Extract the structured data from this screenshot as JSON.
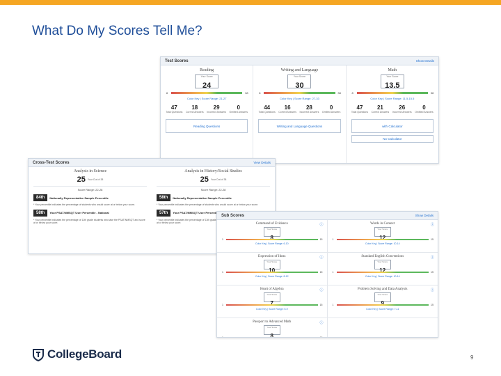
{
  "slide": {
    "title": "What Do My Scores Tell Me?",
    "page_number": "9",
    "logo_text": "CollegeBoard",
    "accent_color": "#f5a623",
    "title_color": "#1f4e99"
  },
  "test_scores": {
    "title": "Test Scores",
    "link": "Show Details",
    "columns": [
      {
        "subject": "Reading",
        "score_caption": "Your Score",
        "score": "24",
        "min": "8",
        "max": "38",
        "links": "Color Key | Score Range: 21-27",
        "stats": [
          {
            "num": "47",
            "label": "Total Questions"
          },
          {
            "num": "18",
            "label": "Correct Answers"
          },
          {
            "num": "29",
            "label": "Incorrect Answers"
          },
          {
            "num": "0",
            "label": "Omitted Answers"
          }
        ],
        "button": "Reading Questions"
      },
      {
        "subject": "Writing and Language",
        "score_caption": "Your Score",
        "score": "30",
        "min": "8",
        "max": "38",
        "links": "Color Key | Score Range: 27-33",
        "stats": [
          {
            "num": "44",
            "label": "Total Questions"
          },
          {
            "num": "16",
            "label": "Correct Answers"
          },
          {
            "num": "28",
            "label": "Incorrect Answers"
          },
          {
            "num": "0",
            "label": "Omitted Answers"
          }
        ],
        "button": "Writing and Language Questions"
      },
      {
        "subject": "Math",
        "score_caption": "Your Score",
        "score": "13.5",
        "min": "8",
        "max": "38",
        "links": "Color Key | Score Range: 11.5-15.5",
        "stats": [
          {
            "num": "47",
            "label": "Total Questions"
          },
          {
            "num": "21",
            "label": "Correct Answers"
          },
          {
            "num": "26",
            "label": "Incorrect Answers"
          },
          {
            "num": "0",
            "label": "Omitted Answers"
          }
        ],
        "button": "with Calculator",
        "button2": "No Calculator"
      }
    ]
  },
  "cross_test": {
    "title": "Cross-Test Scores",
    "link": "View Details",
    "columns": [
      {
        "subject": "Analysis in Science",
        "score": "25",
        "out_of": "Your Out of 38",
        "range": "Score Range: 22-28",
        "pct1": "84th",
        "pct1_label": "Nationally Representative Sample Percentile",
        "text1": "* Your percentile indicates the percentage of students who would score at or below your score.",
        "pct2": "58th",
        "pct2_label": "Your PSAT/NMSQT User Percentile - National",
        "text2": "* Your percentile indicates the percentage of 11th grade students who take the PSAT/NMSQT and score at or below your score."
      },
      {
        "subject": "Analysis in History/Social Studies",
        "score": "25",
        "out_of": "Your Out of 38",
        "range": "Score Range: 22-28",
        "pct1": "58th",
        "pct1_label": "Nationally Representative Sample Percentile",
        "text1": "* Your percentile indicates the percentage of students who would score at or below your score.",
        "pct2": "57th",
        "pct2_label": "Your PSAT/NMSQT User Percentile - National",
        "text2": "* Your percentile indicates the percentage of 11th grade students who take the PSAT/NMSQT and score at or below your score."
      }
    ]
  },
  "sub_scores": {
    "title": "Sub Scores",
    "link": "Show Details",
    "cells": [
      {
        "name": "Command of Evidence",
        "caption": "Your Score",
        "score": "8",
        "min": "1",
        "max": "15",
        "links": "Color Key | Score Range: 6-10"
      },
      {
        "name": "Words in Context",
        "caption": "Your Score",
        "score": "12",
        "min": "1",
        "max": "15",
        "links": "Color Key | Score Range: 10-14"
      },
      {
        "name": "Expression of Ideas",
        "caption": "Your Score",
        "score": "10",
        "min": "1",
        "max": "15",
        "links": "Color Key | Score Range: 8-12"
      },
      {
        "name": "Standard English Conventions",
        "caption": "Your Score",
        "score": "12",
        "min": "1",
        "max": "15",
        "links": "Color Key | Score Range: 10-14"
      },
      {
        "name": "Heart of Algebra",
        "caption": "Your Score",
        "score": "7",
        "min": "1",
        "max": "15",
        "links": "Color Key | Score Range: 5-9"
      },
      {
        "name": "Problem Solving and Data Analysis",
        "caption": "Your Score",
        "score": "9",
        "min": "1",
        "max": "15",
        "links": "Color Key | Score Range: 7-11"
      },
      {
        "name": "Passport to Advanced Math",
        "caption": "Your Score",
        "score": "8",
        "min": "1",
        "max": "15",
        "links": ""
      }
    ]
  }
}
